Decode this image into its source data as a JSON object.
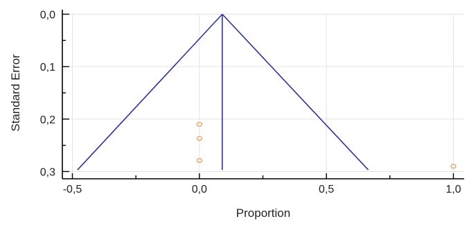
{
  "chart_data": {
    "type": "scatter",
    "subtype": "funnel plot",
    "xlabel": "Proportion",
    "ylabel": "Standard Error",
    "xlim": [
      -0.5,
      1.0
    ],
    "ylim": [
      0.0,
      0.3
    ],
    "y_axis_inverted": true,
    "grid": true,
    "x_ticks": [
      "-0,5",
      "0,0",
      "0,5",
      "1,0"
    ],
    "y_ticks": [
      "0,0",
      "0,1",
      "0,2",
      "0,3"
    ],
    "x_tick_values": [
      -0.5,
      0.0,
      0.5,
      1.0
    ],
    "y_tick_values": [
      0.0,
      0.1,
      0.2,
      0.3
    ],
    "series": [
      {
        "kind": "points",
        "marker": "circle-open",
        "color": "#E8A060",
        "points": [
          {
            "x": 0.0,
            "y": 0.21
          },
          {
            "x": 0.0,
            "y": 0.237
          },
          {
            "x": 0.0,
            "y": 0.279
          },
          {
            "x": 1.0,
            "y": 0.29
          }
        ]
      },
      {
        "kind": "funnel",
        "color": "#2E3192",
        "center": 0.09,
        "apex_se": 0.0,
        "left": [
          {
            "x": -0.48,
            "y": 0.297
          },
          {
            "x": 0.09,
            "y": 0.0
          }
        ],
        "right": [
          {
            "x": 0.09,
            "y": 0.0
          },
          {
            "x": 0.665,
            "y": 0.297
          }
        ],
        "vertical": [
          {
            "x": 0.09,
            "y": 0.0
          },
          {
            "x": 0.09,
            "y": 0.297
          }
        ]
      }
    ]
  }
}
